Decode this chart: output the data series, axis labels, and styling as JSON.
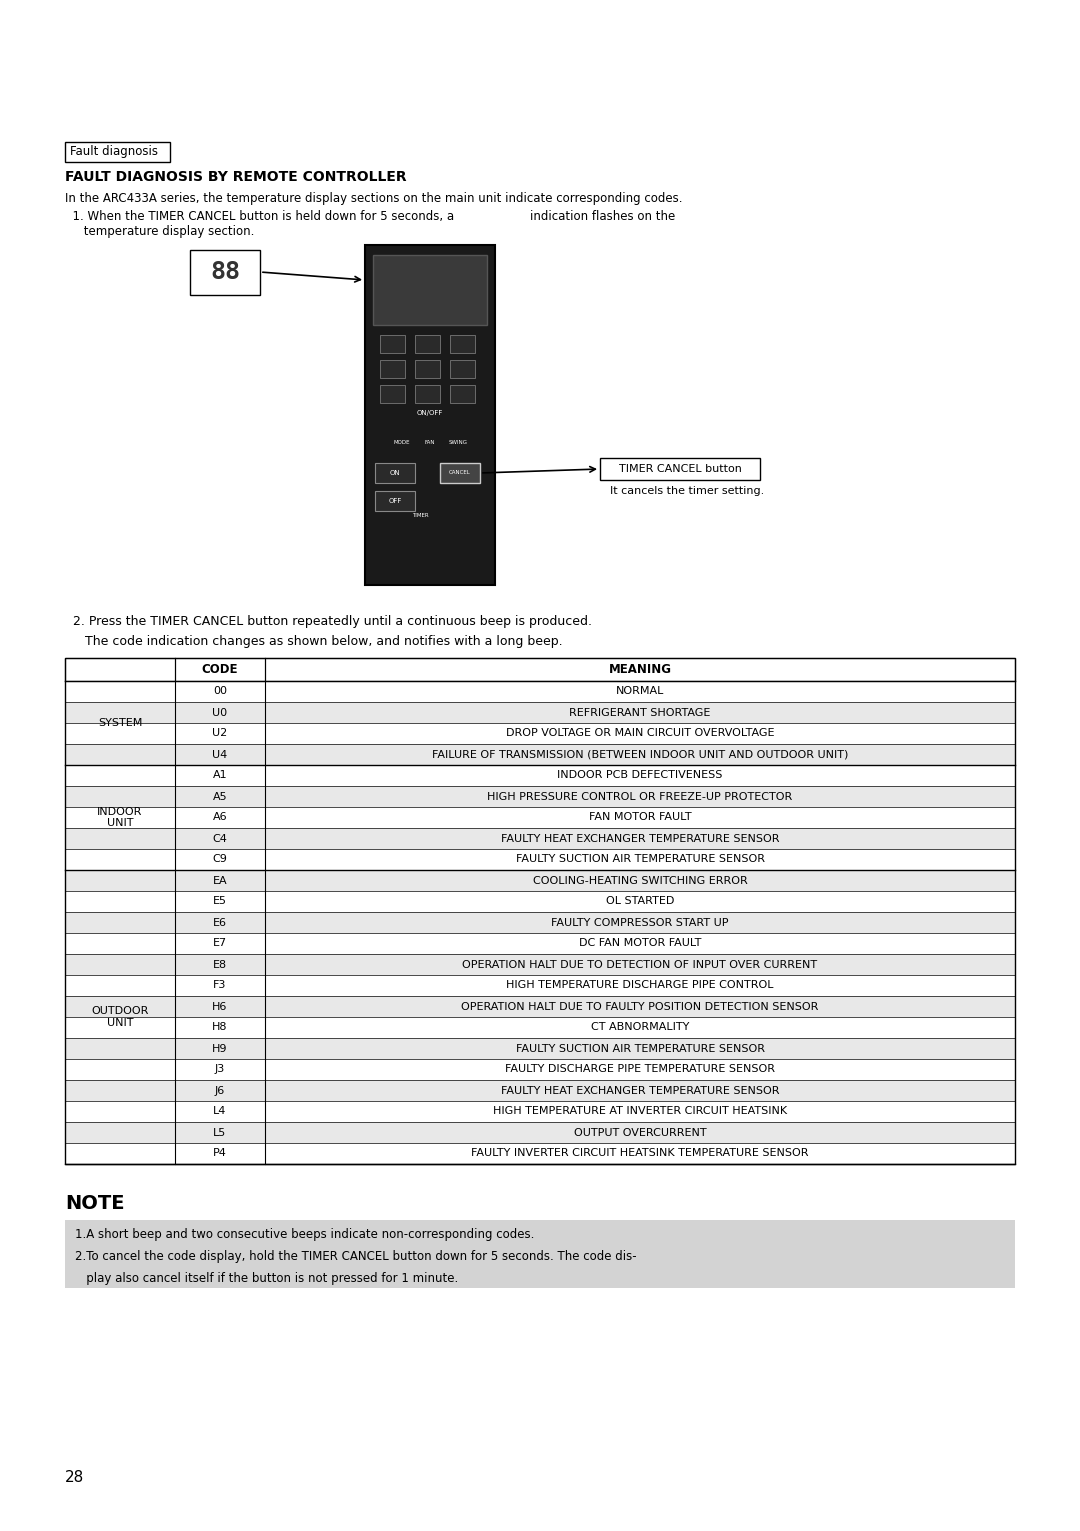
{
  "page_bg": "#ffffff",
  "section_label": "Fault diagnosis",
  "title": "FAULT DIAGNOSIS BY REMOTE CONTROLLER",
  "intro_line1": "In the ARC433A series, the temperature display sections on the main unit indicate corresponding codes.",
  "intro_line2a": "  1. When the TIMER CANCEL button is held down for 5 seconds, a",
  "intro_line2b": "indication flashes on the",
  "intro_line3": "     temperature display section.",
  "step2_line1": "  2. Press the TIMER CANCEL button repeatedly until a continuous beep is produced.",
  "step2_line2": "     The code indication changes as shown below, and notifies with a long beep.",
  "timer_cancel_label": "TIMER CANCEL button",
  "timer_cancel_desc": "It cancels the timer setting.",
  "table_headers": [
    "CODE",
    "MEANING"
  ],
  "table_data": [
    [
      "",
      "00",
      "NORMAL"
    ],
    [
      "SYSTEM",
      "U0",
      "REFRIGERANT SHORTAGE"
    ],
    [
      "",
      "U2",
      "DROP VOLTAGE OR MAIN CIRCUIT OVERVOLTAGE"
    ],
    [
      "",
      "U4",
      "FAILURE OF TRANSMISSION (BETWEEN INDOOR UNIT AND OUTDOOR UNIT)"
    ],
    [
      "",
      "A1",
      "INDOOR PCB DEFECTIVENESS"
    ],
    [
      "INDOOR\nUNIT",
      "A5",
      "HIGH PRESSURE CONTROL OR FREEZE-UP PROTECTOR"
    ],
    [
      "",
      "A6",
      "FAN MOTOR FAULT"
    ],
    [
      "",
      "C4",
      "FAULTY HEAT EXCHANGER TEMPERATURE SENSOR"
    ],
    [
      "",
      "C9",
      "FAULTY SUCTION AIR TEMPERATURE SENSOR"
    ],
    [
      "",
      "EA",
      "COOLING-HEATING SWITCHING ERROR"
    ],
    [
      "",
      "E5",
      "OL STARTED"
    ],
    [
      "",
      "E6",
      "FAULTY COMPRESSOR START UP"
    ],
    [
      "",
      "E7",
      "DC FAN MOTOR FAULT"
    ],
    [
      "",
      "E8",
      "OPERATION HALT DUE TO DETECTION OF INPUT OVER CURRENT"
    ],
    [
      "",
      "F3",
      "HIGH TEMPERATURE DISCHARGE PIPE CONTROL"
    ],
    [
      "OUTDOOR\nUNIT",
      "H6",
      "OPERATION HALT DUE TO FAULTY POSITION DETECTION SENSOR"
    ],
    [
      "",
      "H8",
      "CT ABNORMALITY"
    ],
    [
      "",
      "H9",
      "FAULTY SUCTION AIR TEMPERATURE SENSOR"
    ],
    [
      "",
      "J3",
      "FAULTY DISCHARGE PIPE TEMPERATURE SENSOR"
    ],
    [
      "",
      "J6",
      "FAULTY HEAT EXCHANGER TEMPERATURE SENSOR"
    ],
    [
      "",
      "L4",
      "HIGH TEMPERATURE AT INVERTER CIRCUIT HEATSINK"
    ],
    [
      "",
      "L5",
      "OUTPUT OVERCURRENT"
    ],
    [
      "",
      "P4",
      "FAULTY INVERTER CIRCUIT HEATSINK TEMPERATURE SENSOR"
    ]
  ],
  "system_span": [
    1,
    4
  ],
  "indoor_span": [
    5,
    9
  ],
  "outdoor_span": [
    10,
    23
  ],
  "note_title": "NOTE",
  "note_lines": [
    "1.A short beep and two consecutive beeps indicate non-corresponding codes.",
    "2.To cancel the code display, hold the TIMER CANCEL button down for 5 seconds. The code dis-",
    "   play also cancel itself if the button is not pressed for 1 minute."
  ],
  "page_number": "28",
  "table_border_color": "#000000",
  "note_bg": "#d9d9d9",
  "row_alt_color": "#e8e8e8",
  "row_white_color": "#ffffff"
}
